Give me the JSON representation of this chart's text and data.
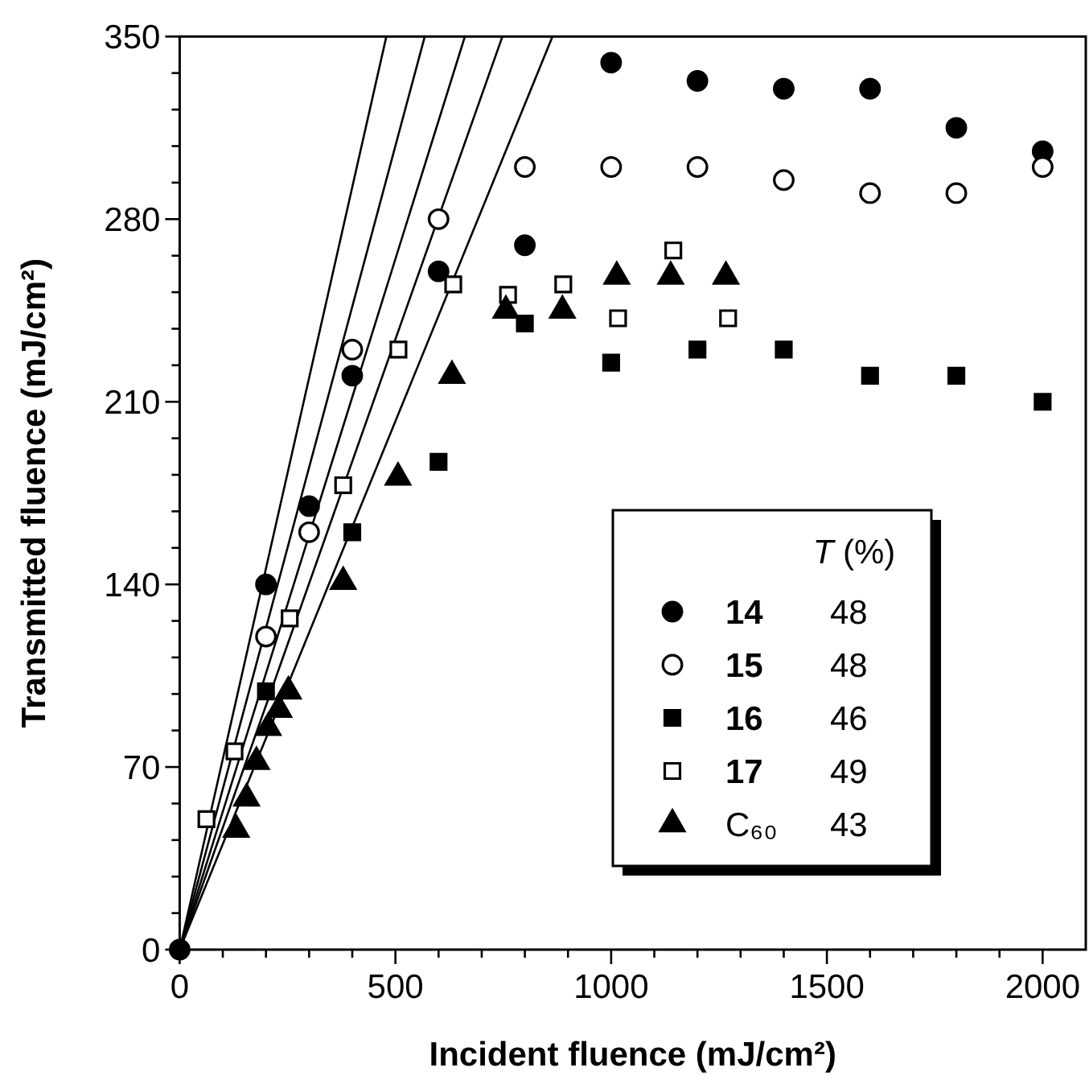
{
  "chart_data": {
    "type": "scatter",
    "xlabel": "Incident fluence (mJ/cm²)",
    "ylabel": "Transmitted fluence (mJ/cm²)",
    "xlim": [
      0,
      2100
    ],
    "ylim": [
      0,
      350
    ],
    "xticks": [
      0,
      {
        "value": 100,
        "label": null
      },
      {
        "value": 200,
        "label": null
      },
      {
        "value": 300,
        "label": null
      },
      {
        "value": 400,
        "label": null
      },
      500,
      {
        "value": 600,
        "label": null
      },
      {
        "value": 700,
        "label": null
      },
      {
        "value": 800,
        "label": null
      },
      {
        "value": 900,
        "label": null
      },
      1000,
      {
        "value": 1100,
        "label": null
      },
      {
        "value": 1200,
        "label": null
      },
      {
        "value": 1300,
        "label": null
      },
      {
        "value": 1400,
        "label": null
      },
      1500,
      {
        "value": 1600,
        "label": null
      },
      {
        "value": 1700,
        "label": null
      },
      {
        "value": 1800,
        "label": null
      },
      {
        "value": 1900,
        "label": null
      },
      2000
    ],
    "yticks": [
      0,
      {
        "value": 14,
        "label": null
      },
      {
        "value": 28,
        "label": null
      },
      {
        "value": 42,
        "label": null
      },
      {
        "value": 56,
        "label": null
      },
      70,
      {
        "value": 84,
        "label": null
      },
      {
        "value": 98,
        "label": null
      },
      {
        "value": 112,
        "label": null
      },
      {
        "value": 126,
        "label": null
      },
      140,
      {
        "value": 154,
        "label": null
      },
      {
        "value": 168,
        "label": null
      },
      {
        "value": 182,
        "label": null
      },
      {
        "value": 196,
        "label": null
      },
      210,
      {
        "value": 224,
        "label": null
      },
      {
        "value": 238,
        "label": null
      },
      {
        "value": 252,
        "label": null
      },
      {
        "value": 266,
        "label": null
      },
      280,
      {
        "value": 294,
        "label": null
      },
      {
        "value": 308,
        "label": null
      },
      {
        "value": 322,
        "label": null
      },
      {
        "value": 336,
        "label": null
      },
      350
    ],
    "grid": false,
    "legend": "bottom right",
    "legend_title": "T (%)",
    "annotations": [
      "48",
      "48",
      "46",
      "49",
      "43"
    ],
    "series": [
      {
        "name": "14",
        "color": "#000000",
        "marker": "circle",
        "x": [
          0,
          200,
          300,
          400,
          600,
          800,
          1000,
          1200,
          1400,
          1600,
          1800,
          2000
        ],
        "values": [
          0,
          140,
          170,
          220,
          260,
          270,
          340,
          333,
          330,
          330,
          315,
          306
        ]
      },
      {
        "name": "15",
        "color": "#ffffff",
        "marker": "circle",
        "x": [
          200,
          300,
          400,
          600,
          800,
          1000,
          1200,
          1400,
          1600,
          1800,
          2000
        ],
        "values": [
          120,
          160,
          230,
          280,
          300,
          300,
          300,
          295,
          290,
          290,
          300
        ]
      },
      {
        "name": "16",
        "color": "#000000",
        "marker": "square",
        "x": [
          200,
          400,
          600,
          800,
          1000,
          1200,
          1400,
          1600,
          1800,
          2000
        ],
        "values": [
          99,
          160,
          187,
          240,
          225,
          230,
          230,
          220,
          220,
          210
        ]
      },
      {
        "name": "17",
        "color": "#ffffff",
        "marker": "square",
        "x": [
          62,
          127,
          255,
          379,
          507,
          634,
          761,
          889,
          1016,
          1144,
          1271
        ],
        "values": [
          50,
          76,
          127,
          178,
          230,
          255,
          251,
          255,
          242,
          268,
          242
        ]
      },
      {
        "name": "C₆₀",
        "color": "#000000",
        "marker": "triangle",
        "x": [
          131,
          155,
          178,
          205,
          230,
          252,
          379,
          506,
          631,
          756,
          887,
          1013,
          1138,
          1266
        ],
        "values": [
          46,
          58,
          72,
          85,
          92,
          99,
          141,
          181,
          220,
          245,
          245,
          258,
          258,
          258
        ]
      },
      {
        "type": "line",
        "color": "#000000",
        "line_style": "solid",
        "x": [
          0,
          479
        ],
        "values": [
          0,
          350
        ]
      },
      {
        "type": "line",
        "color": "#000000",
        "line_style": "solid",
        "x": [
          0,
          568
        ],
        "values": [
          0,
          350
        ]
      },
      {
        "type": "line",
        "color": "#000000",
        "line_style": "solid",
        "x": [
          0,
          661
        ],
        "values": [
          0,
          350
        ]
      },
      {
        "type": "line",
        "color": "#000000",
        "line_style": "solid",
        "x": [
          0,
          748
        ],
        "values": [
          0,
          350
        ]
      },
      {
        "type": "line",
        "color": "#000000",
        "line_style": "solid",
        "x": [
          0,
          864
        ],
        "values": [
          0,
          350
        ]
      }
    ]
  }
}
